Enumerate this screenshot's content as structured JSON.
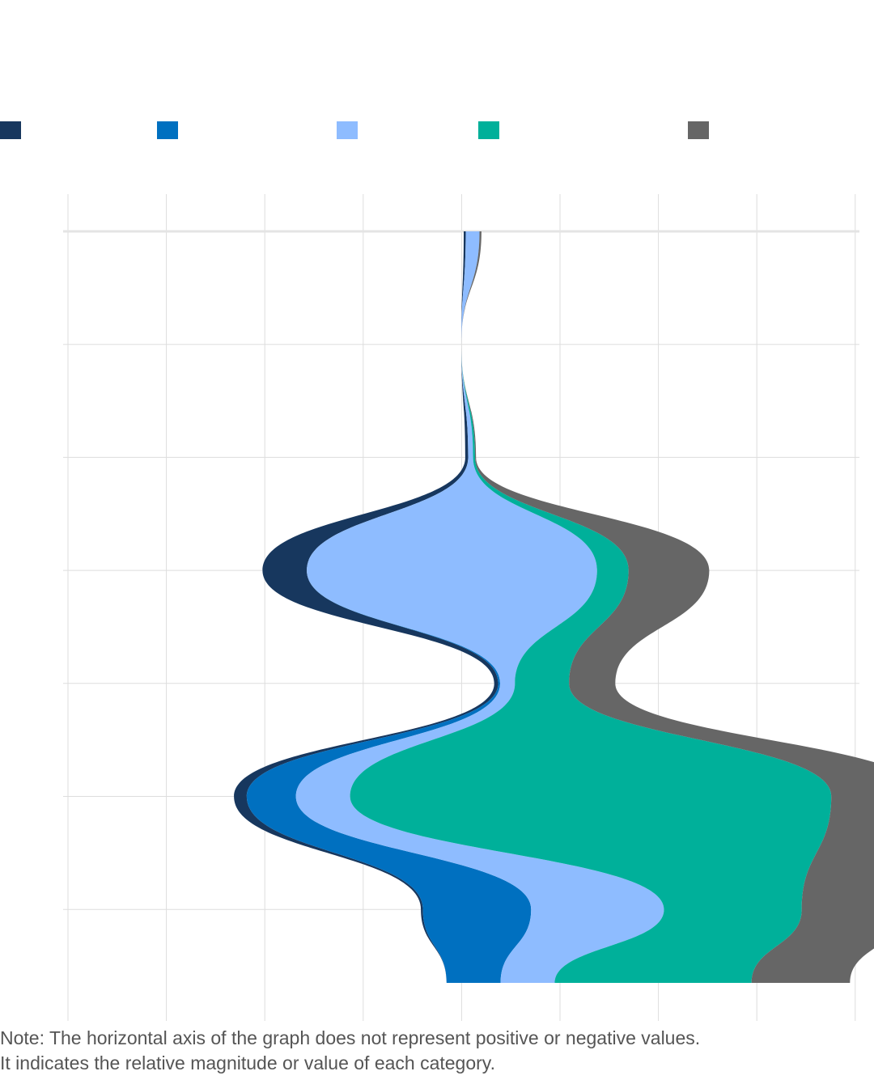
{
  "chart_data": {
    "type": "area",
    "subtype": "streamgraph",
    "orientation": "vertical",
    "x_gridlines": 9,
    "rows": 7,
    "grid": true,
    "legend_position": "top",
    "series": [
      {
        "name": "",
        "color": "#17375E",
        "values": [
          0.02,
          0,
          0.03,
          0.45,
          0.04,
          0.13,
          0.02,
          0
        ]
      },
      {
        "name": "",
        "color": "#0070C0",
        "values": [
          0,
          0,
          0,
          0,
          0.02,
          0.5,
          1.1,
          0.55
        ]
      },
      {
        "name": "",
        "color": "#8EBCFF",
        "values": [
          0.14,
          0,
          0.05,
          2.95,
          0.15,
          0.55,
          1.35,
          0.55
        ]
      },
      {
        "name": "",
        "color": "#00B09A",
        "values": [
          0,
          0,
          0.02,
          0.32,
          0.55,
          4.89,
          1.4,
          2.0
        ]
      },
      {
        "name": "",
        "color": "#666666",
        "values": [
          0.02,
          0,
          0.01,
          0.82,
          0.47,
          0.95,
          1.05,
          1.0
        ]
      }
    ],
    "row_centers": [
      0.115,
      0,
      0.095,
      0.25,
      0.95,
      1.2,
      2.05,
      1.9
    ]
  },
  "note": {
    "line1": "Note: The horizontal axis of the graph does not represent positive or negative values.",
    "line2": "It indicates the relative magnitude or value of each category."
  }
}
